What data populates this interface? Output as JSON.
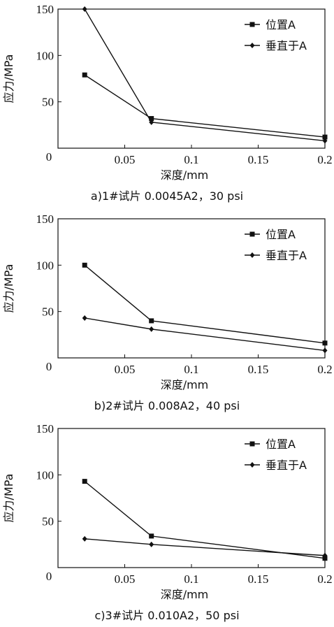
{
  "chart_data": [
    {
      "type": "line",
      "caption": "a)1#试片  0.0045A2，30 psi",
      "xlabel": "深度/mm",
      "ylabel": "应力/MPa",
      "xlim": [
        0,
        0.2
      ],
      "ylim": [
        0,
        150
      ],
      "x_ticks": [
        "0",
        "0.05",
        "0.1",
        "0.15",
        "0.2"
      ],
      "y_ticks": [
        "50",
        "100",
        "150"
      ],
      "legend_position": "top-right",
      "series": [
        {
          "name": "位置A",
          "marker": "square",
          "x": [
            0.02,
            0.07,
            0.2
          ],
          "y": [
            79,
            32,
            12
          ]
        },
        {
          "name": "垂直于A",
          "marker": "diamond",
          "x": [
            0.02,
            0.07,
            0.2
          ],
          "y": [
            150,
            28,
            8
          ]
        }
      ]
    },
    {
      "type": "line",
      "caption": "b)2#试片  0.008A2，40 psi",
      "xlabel": "深度/mm",
      "ylabel": "应力/MPa",
      "xlim": [
        0,
        0.2
      ],
      "ylim": [
        0,
        150
      ],
      "x_ticks": [
        "0",
        "0.05",
        "0.1",
        "0.15",
        "0.2"
      ],
      "y_ticks": [
        "50",
        "100",
        "150"
      ],
      "legend_position": "top-right",
      "series": [
        {
          "name": "位置A",
          "marker": "square",
          "x": [
            0.02,
            0.07,
            0.2
          ],
          "y": [
            100,
            40,
            16
          ]
        },
        {
          "name": "垂直于A",
          "marker": "diamond",
          "x": [
            0.02,
            0.07,
            0.2
          ],
          "y": [
            43,
            31,
            8
          ]
        }
      ]
    },
    {
      "type": "line",
      "caption": "c)3#试片  0.010A2，50 psi",
      "xlabel": "深度/mm",
      "ylabel": "应力/MPa",
      "xlim": [
        0,
        0.2
      ],
      "ylim": [
        0,
        150
      ],
      "x_ticks": [
        "0",
        "0.05",
        "0.1",
        "0.15",
        "0.2"
      ],
      "y_ticks": [
        "50",
        "100",
        "150"
      ],
      "legend_position": "top-right",
      "series": [
        {
          "name": "位置A",
          "marker": "square",
          "x": [
            0.02,
            0.07,
            0.2
          ],
          "y": [
            93,
            34,
            10
          ]
        },
        {
          "name": "垂直于A",
          "marker": "diamond",
          "x": [
            0.02,
            0.07,
            0.2
          ],
          "y": [
            31,
            25,
            13
          ]
        }
      ]
    }
  ]
}
